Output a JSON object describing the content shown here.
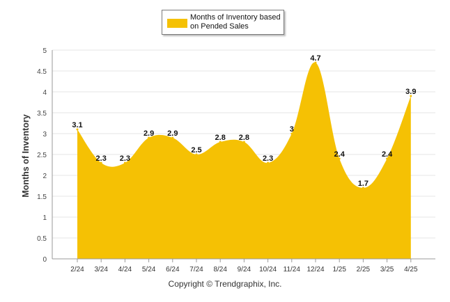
{
  "legend": {
    "label": "Months of Inventory based on Pended Sales"
  },
  "footer": {
    "copyright": "Copyright © Trendgraphix, Inc."
  },
  "colors": {
    "area": "#f5c104",
    "grid": "#e4e4e4",
    "axis": "#999999"
  },
  "chart_data": {
    "type": "area",
    "title": "",
    "xlabel": "",
    "ylabel": "Months of Inventory",
    "categories": [
      "2/24",
      "3/24",
      "4/24",
      "5/24",
      "6/24",
      "7/24",
      "8/24",
      "9/24",
      "10/24",
      "11/24",
      "12/24",
      "1/25",
      "2/25",
      "3/25",
      "4/25"
    ],
    "series": [
      {
        "name": "Months of Inventory based on Pended Sales",
        "values": [
          3.1,
          2.3,
          2.3,
          2.9,
          2.9,
          2.5,
          2.8,
          2.8,
          2.3,
          3,
          4.7,
          2.4,
          1.7,
          2.4,
          3.9
        ],
        "data_labels": [
          "3.1",
          "2.3",
          "2.3",
          "2.9",
          "2.9",
          "2.5",
          "2.8",
          "2.8",
          "2.3",
          "3",
          "4.7",
          "2.4",
          "1.7",
          "2.4",
          "3.9"
        ]
      }
    ],
    "ylim": [
      0,
      5
    ],
    "yticks": [
      "0",
      "0.5",
      "1",
      "1.5",
      "2",
      "2.5",
      "3",
      "3.5",
      "4",
      "4.5",
      "5"
    ],
    "grid": true,
    "legend_position": "top-center"
  }
}
